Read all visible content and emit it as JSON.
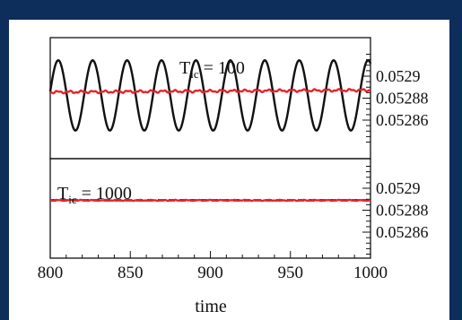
{
  "theme": {
    "background": "#0d2d5a",
    "panel_bg": "#ffffff"
  },
  "chart_data": [
    {
      "type": "line",
      "panel_label_main": "T",
      "panel_label_sub": "ic",
      "panel_label_rest": " = 100",
      "xlabel": "",
      "ylabel": "",
      "xlim": [
        800,
        1000
      ],
      "ylim": [
        0.05285,
        0.053
      ],
      "y_ticks": [
        0.0529,
        0.05288,
        0.05286
      ],
      "y_tick_labels": [
        "0.0529",
        "0.05288",
        "0.05286"
      ],
      "grid": false,
      "series": [
        {
          "color": "#111111",
          "style": "solid",
          "mean": 0.0528825,
          "amplitude": 3.2e-05,
          "period": 21.5,
          "phase_x": 805,
          "values_note": "periodic oscillation"
        },
        {
          "color": "#e8232a",
          "style": "solid",
          "mean": 0.0528855,
          "wobble": 8e-07,
          "drift": 1.8e-06
        }
      ]
    },
    {
      "type": "line",
      "panel_label_main": "T",
      "panel_label_sub": "ic",
      "panel_label_rest": " = 1000",
      "xlabel": "time",
      "ylabel": "",
      "xlim": [
        800,
        1000
      ],
      "ylim": [
        0.05285,
        0.053
      ],
      "x_ticks": [
        800,
        850,
        900,
        950,
        1000
      ],
      "x_tick_labels": [
        "800",
        "850",
        "900",
        "950",
        "1000"
      ],
      "y_ticks": [
        0.0529,
        0.05288,
        0.05286
      ],
      "y_tick_labels": [
        "0.0529",
        "0.05288",
        "0.05286"
      ],
      "grid": false,
      "series": [
        {
          "color": "#111111",
          "style": "dashed",
          "mean": 0.052889
        },
        {
          "color": "#e8232a",
          "style": "solid",
          "mean": 0.052889,
          "wobble": 3e-07
        }
      ]
    }
  ]
}
